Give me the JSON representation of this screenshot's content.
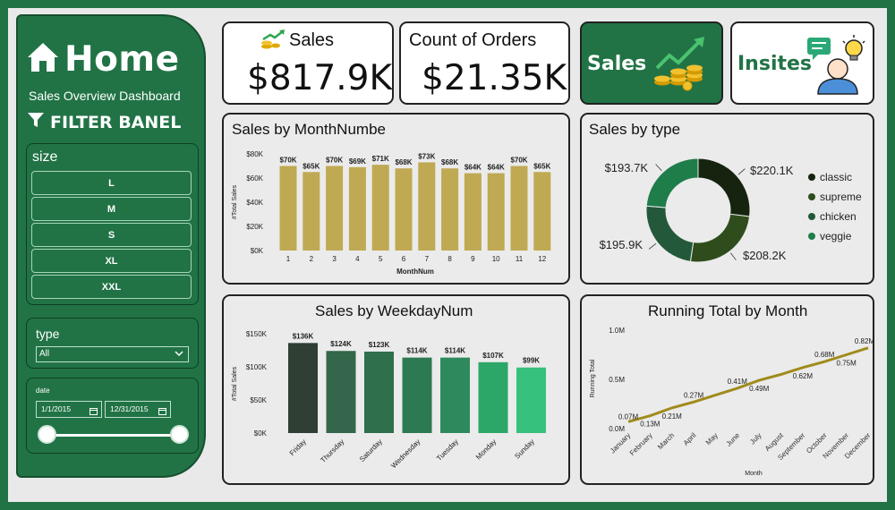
{
  "sidebar": {
    "title": "Home",
    "subtitle": "Sales Overview Dashboard",
    "filter_title": "FILTER BANEL",
    "size_label": "size",
    "sizes": [
      "L",
      "M",
      "S",
      "XL",
      "XXL"
    ],
    "type_label": "type",
    "type_value": "All",
    "date_label": "date",
    "date_start": "1/1/2015",
    "date_end": "12/31/2015"
  },
  "kpis": {
    "sales_label": "Sales",
    "sales_value": "$817.9K",
    "orders_label": "Count of Orders",
    "orders_value": "$21.35K"
  },
  "nav": {
    "sales_label": "Sales",
    "insites_label": "Insites"
  },
  "colors": {
    "accent": "#217346",
    "bar_month": "#bfa953",
    "running_line": "#a08b1c"
  },
  "chart_data": [
    {
      "type": "bar",
      "title": "Sales by MonthNumbe",
      "xlabel": "MonthNum",
      "ylabel": "#Total Sales",
      "categories": [
        "1",
        "2",
        "3",
        "4",
        "5",
        "6",
        "7",
        "8",
        "9",
        "10",
        "11",
        "12"
      ],
      "values": [
        70,
        65,
        70,
        69,
        71,
        68,
        73,
        68,
        64,
        64,
        70,
        65
      ],
      "data_labels": [
        "$70K",
        "$65K",
        "$70K",
        "$69K",
        "$71K",
        "$68K",
        "$73K",
        "$68K",
        "$64K",
        "$64K",
        "$70K",
        "$65K"
      ],
      "yticks": [
        "$0K",
        "$20K",
        "$40K",
        "$60K",
        "$80K"
      ],
      "ylim": [
        0,
        80
      ]
    },
    {
      "type": "pie",
      "title": "Sales by type",
      "categories": [
        "classic",
        "supreme",
        "chicken",
        "veggie"
      ],
      "values": [
        220.1,
        208.2,
        195.9,
        193.7
      ],
      "data_labels": [
        "$220.1K",
        "$208.2K",
        "$195.9K",
        "$193.7K"
      ],
      "colors": [
        "#16240f",
        "#2f4d1c",
        "#23593a",
        "#1f7d4a"
      ]
    },
    {
      "type": "bar",
      "title": "Sales by WeekdayNum",
      "ylabel": "#Total Sales",
      "categories": [
        "Friday",
        "Thursday",
        "Saturday",
        "Wednesday",
        "Tuesday",
        "Monday",
        "Sunday"
      ],
      "values": [
        136,
        124,
        123,
        114,
        114,
        107,
        99
      ],
      "data_labels": [
        "$136K",
        "$124K",
        "$123K",
        "$114K",
        "$114K",
        "$107K",
        "$99K"
      ],
      "yticks": [
        "$0K",
        "$50K",
        "$100K",
        "$150K"
      ],
      "ylim": [
        0,
        150
      ],
      "colors": [
        "#2f3f34",
        "#33664a",
        "#2f6f4c",
        "#2d7a52",
        "#2e8a5c",
        "#2da767",
        "#36c17c"
      ]
    },
    {
      "type": "line",
      "title": "Running Total by Month",
      "xlabel": "Month",
      "ylabel": "Running Total",
      "categories": [
        "January",
        "February",
        "March",
        "April",
        "May",
        "June",
        "July",
        "August",
        "September",
        "October",
        "November",
        "December"
      ],
      "values": [
        0.07,
        0.13,
        0.21,
        0.27,
        0.34,
        0.41,
        0.49,
        0.55,
        0.62,
        0.68,
        0.75,
        0.82
      ],
      "data_labels": [
        "0.07M",
        "0.13M",
        "0.21M",
        "0.27M",
        "",
        "0.41M",
        "0.49M",
        "",
        "0.62M",
        "0.68M",
        "0.75M",
        "0.82M"
      ],
      "yticks": [
        "0.0M",
        "0.5M",
        "1.0M"
      ],
      "ylim": [
        0,
        1.0
      ]
    }
  ]
}
